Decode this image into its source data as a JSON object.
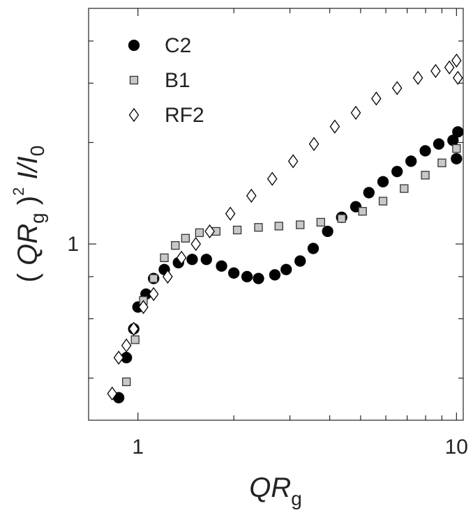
{
  "chart_data": {
    "type": "scatter",
    "xlabel": [
      "QR",
      "g"
    ],
    "ylabel": [
      "( ",
      "QR",
      "g",
      " )",
      "2",
      " I/I",
      "0"
    ],
    "xscale": "log",
    "yscale": "log",
    "xlim": [
      0.7,
      10.5
    ],
    "ylim": [
      0.3,
      5
    ],
    "xticks": [
      1,
      10
    ],
    "xminor": [
      2,
      3,
      4,
      5,
      6,
      7,
      8,
      9
    ],
    "yticks": [
      1
    ],
    "yminor": [
      0.4,
      0.6,
      0.8,
      2,
      3,
      4
    ],
    "legend": "upper left",
    "series": [
      {
        "name": "C2",
        "marker": "circle",
        "color": "#000000",
        "edgecolor": "#000000",
        "x": [
          0.87,
          0.92,
          0.97,
          1.0,
          1.06,
          1.12,
          1.21,
          1.34,
          1.48,
          1.64,
          1.83,
          2.0,
          2.2,
          2.39,
          2.69,
          2.92,
          3.23,
          3.55,
          3.94,
          4.36,
          4.83,
          5.31,
          5.88,
          6.51,
          7.2,
          7.98,
          8.8,
          9.75,
          10.1,
          10.0
        ],
        "values": [
          0.35,
          0.46,
          0.56,
          0.65,
          0.71,
          0.79,
          0.84,
          0.88,
          0.9,
          0.9,
          0.86,
          0.82,
          0.8,
          0.79,
          0.81,
          0.84,
          0.89,
          0.97,
          1.09,
          1.2,
          1.29,
          1.42,
          1.53,
          1.64,
          1.76,
          1.89,
          1.98,
          2.03,
          2.15,
          1.79
        ]
      },
      {
        "name": "B1",
        "marker": "square",
        "color": "#c8c8c8",
        "edgecolor": "#333333",
        "x": [
          0.92,
          0.98,
          1.04,
          1.12,
          1.21,
          1.31,
          1.41,
          1.56,
          1.76,
          2.05,
          2.39,
          2.77,
          3.23,
          3.75,
          4.36,
          5.07,
          5.88,
          6.85,
          7.98,
          9.0,
          10.0
        ],
        "values": [
          0.39,
          0.52,
          0.68,
          0.79,
          0.91,
          0.99,
          1.04,
          1.08,
          1.09,
          1.1,
          1.12,
          1.13,
          1.14,
          1.16,
          1.19,
          1.25,
          1.34,
          1.46,
          1.6,
          1.74,
          1.92
        ]
      },
      {
        "name": "RF2",
        "marker": "diamond",
        "color": "#ffffff",
        "edgecolor": "#000000",
        "x": [
          0.83,
          0.87,
          0.92,
          0.97,
          1.04,
          1.12,
          1.24,
          1.37,
          1.52,
          1.68,
          1.95,
          2.27,
          2.64,
          3.07,
          3.57,
          4.15,
          4.83,
          5.6,
          6.51,
          7.57,
          8.6,
          9.5,
          10.0,
          10.1
        ],
        "values": [
          0.36,
          0.46,
          0.5,
          0.56,
          0.65,
          0.71,
          0.8,
          0.91,
          1.0,
          1.09,
          1.23,
          1.39,
          1.56,
          1.76,
          1.98,
          2.23,
          2.45,
          2.7,
          2.9,
          3.11,
          3.26,
          3.34,
          3.5,
          3.11
        ]
      }
    ]
  }
}
